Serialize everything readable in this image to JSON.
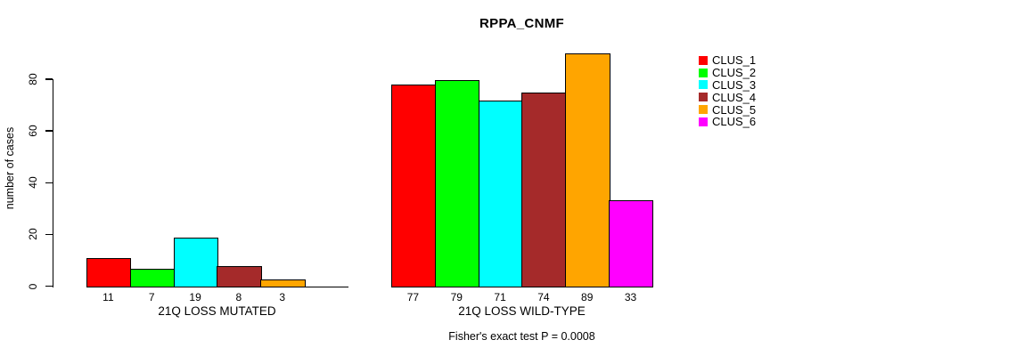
{
  "chart_data": {
    "type": "bar",
    "title": "RPPA_CNMF",
    "ylabel": "number of cases",
    "xlabel": "",
    "ylim": [
      0,
      80
    ],
    "yticks": [
      0,
      20,
      40,
      60,
      80
    ],
    "grid": false,
    "legend_position": "right",
    "categories": [
      "21Q LOSS MUTATED",
      "21Q LOSS WILD-TYPE"
    ],
    "series": [
      {
        "name": "CLUS_1",
        "color": "#FF0000",
        "values": [
          11,
          77
        ]
      },
      {
        "name": "CLUS_2",
        "color": "#00FF00",
        "values": [
          7,
          79
        ]
      },
      {
        "name": "CLUS_3",
        "color": "#00FFFF",
        "values": [
          19,
          71
        ]
      },
      {
        "name": "CLUS_4",
        "color": "#A52A2A",
        "values": [
          8,
          74
        ]
      },
      {
        "name": "CLUS_5",
        "color": "#FFA500",
        "values": [
          3,
          89
        ]
      },
      {
        "name": "CLUS_6",
        "color": "#FF00FF",
        "values": [
          0,
          33
        ]
      }
    ],
    "bar_value_labels_shown": true,
    "zero_bars_unlabeled": true,
    "annotation": "Fisher's exact test P = 0.0008"
  }
}
